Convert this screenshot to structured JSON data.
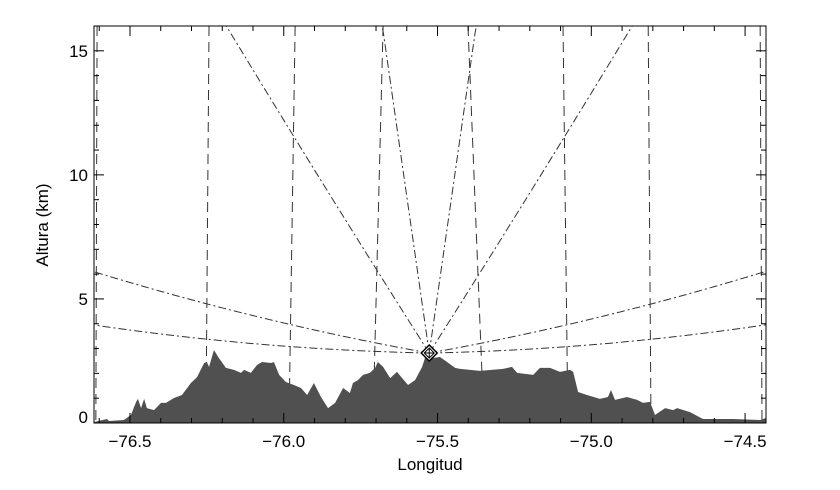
{
  "chart_data": {
    "type": "area",
    "title": "",
    "xlabel": "Longitud",
    "ylabel": "Altura (km)",
    "xlim": [
      -76.617,
      -74.432
    ],
    "ylim": [
      0,
      16
    ],
    "xticks": [
      -76.5,
      -76.0,
      -75.5,
      -75.0,
      -74.5
    ],
    "xtick_labels": [
      "−76.5",
      "−76.0",
      "−75.5",
      "−75.0",
      "−74.5"
    ],
    "xminor_step": 0.1,
    "yticks": [
      0,
      5,
      10,
      15
    ],
    "ytick_labels": [
      "0",
      "5",
      "10",
      "15"
    ],
    "yminor_step": 1,
    "grid": false,
    "colors": {
      "terrain": "#505050",
      "lines": "#333333",
      "axes": "#000000"
    },
    "terrain": {
      "lon": [
        -76.617,
        -76.575,
        -76.568,
        -76.52,
        -76.497,
        -76.48,
        -76.474,
        -76.464,
        -76.454,
        -76.445,
        -76.422,
        -76.399,
        -76.383,
        -76.357,
        -76.331,
        -76.302,
        -76.282,
        -76.259,
        -76.25,
        -76.243,
        -76.227,
        -76.211,
        -76.188,
        -76.162,
        -76.139,
        -76.129,
        -76.107,
        -76.087,
        -76.071,
        -76.041,
        -76.032,
        -76.015,
        -75.993,
        -75.967,
        -75.944,
        -75.924,
        -75.902,
        -75.879,
        -75.856,
        -75.833,
        -75.807,
        -75.785,
        -75.775,
        -75.759,
        -75.742,
        -75.72,
        -75.703,
        -75.694,
        -75.677,
        -75.654,
        -75.632,
        -75.615,
        -75.596,
        -75.573,
        -75.55,
        -75.541,
        -75.515,
        -75.492,
        -75.469,
        -75.443,
        -75.427,
        -75.362,
        -75.287,
        -75.258,
        -75.241,
        -75.189,
        -75.167,
        -75.134,
        -75.102,
        -75.069,
        -75.059,
        -75.043,
        -75.014,
        -74.972,
        -74.946,
        -74.936,
        -74.923,
        -74.884,
        -74.851,
        -74.832,
        -74.809,
        -74.793,
        -74.76,
        -74.734,
        -74.721,
        -74.679,
        -74.637,
        -74.539,
        -74.451,
        -74.432
      ],
      "alt_km": [
        0.04,
        0.16,
        0.08,
        0.12,
        0.32,
        0.85,
        0.97,
        0.6,
        0.97,
        0.6,
        0.52,
        0.81,
        0.81,
        1.01,
        1.13,
        1.61,
        1.85,
        2.42,
        2.46,
        2.26,
        2.94,
        2.62,
        2.22,
        2.14,
        2.02,
        2.14,
        2.02,
        2.34,
        2.46,
        2.42,
        2.46,
        1.94,
        1.65,
        1.53,
        1.41,
        1.13,
        1.61,
        1.05,
        0.6,
        0.81,
        1.41,
        1.21,
        1.61,
        1.73,
        1.94,
        2.02,
        2.22,
        2.46,
        2.26,
        1.81,
        2.06,
        1.81,
        1.53,
        1.73,
        2.26,
        2.62,
        2.62,
        2.66,
        2.46,
        2.22,
        2.18,
        2.1,
        2.18,
        2.26,
        2.02,
        1.94,
        2.22,
        2.22,
        2.06,
        2.14,
        2.06,
        1.25,
        1.13,
        0.97,
        1.05,
        1.33,
        0.93,
        1.05,
        0.93,
        0.81,
        0.85,
        0.32,
        0.6,
        0.52,
        0.6,
        0.44,
        0.16,
        0.16,
        0.12,
        0.2
      ]
    },
    "radar": {
      "lon": -75.527,
      "alt_km": 2.82,
      "symbol": "diamond-plus"
    },
    "beams_elevation_deg": [
      0.13,
      1.15,
      10,
      38
    ],
    "dashed_lines": [
      {
        "lon_top": -76.607,
        "lon_bottom": -76.611
      },
      {
        "lon_top": -76.243,
        "lon_bottom": -76.253
      },
      {
        "lon_top": -75.963,
        "lon_bottom": -75.983
      },
      {
        "lon_top": -75.677,
        "lon_bottom": -75.71
      },
      {
        "lon_top": -75.401,
        "lon_bottom": -75.349
      },
      {
        "lon_top": -75.092,
        "lon_bottom": -75.076
      },
      {
        "lon_top": -74.815,
        "lon_bottom": -74.806
      },
      {
        "lon_top": -74.451,
        "lon_bottom": -74.445
      }
    ]
  }
}
